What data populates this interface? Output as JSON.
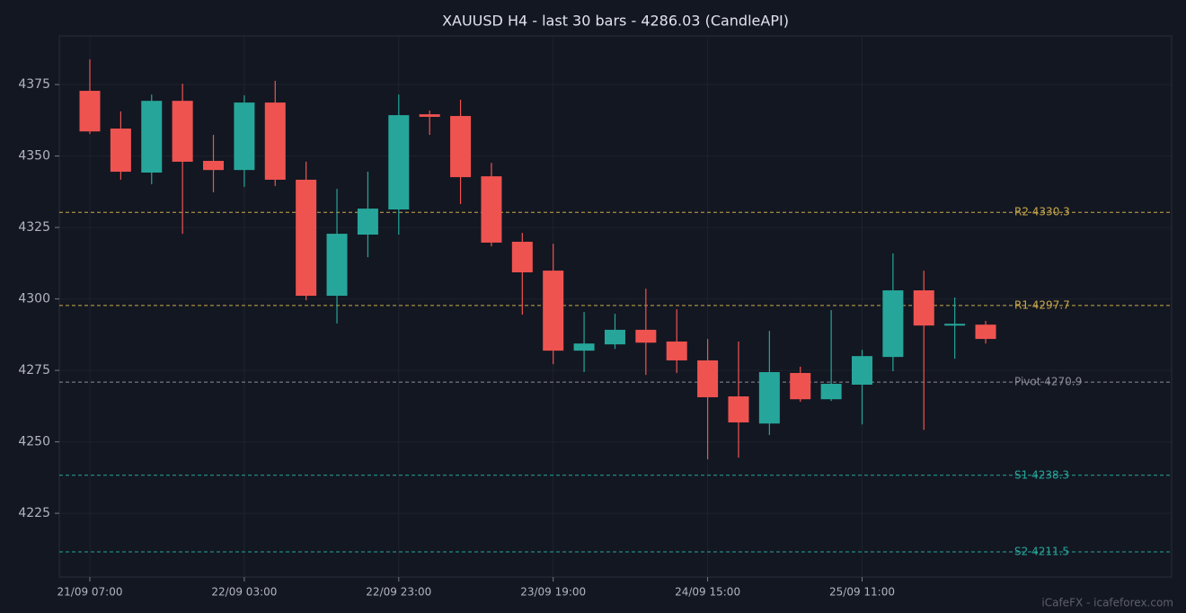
{
  "chart_data": {
    "type": "candlestick",
    "title": "XAUUSD H4 - last 30 bars - 4286.03 (CandleAPI)",
    "categories": [
      "21/09 07:00",
      null,
      null,
      null,
      null,
      "22/09 03:00",
      null,
      null,
      null,
      null,
      "22/09 23:00",
      null,
      null,
      null,
      null,
      "23/09 19:00",
      null,
      null,
      null,
      null,
      "24/09 15:00",
      null,
      null,
      null,
      null,
      "25/09 11:00",
      null,
      null,
      null,
      null
    ],
    "open": [
      4372.8,
      4359.6,
      4344.2,
      4369.3,
      4348.3,
      4345.1,
      4368.7,
      4341.7,
      4301.1,
      4322.5,
      4331.3,
      4364.6,
      4364.0,
      4342.9,
      4320.0,
      4309.9,
      4281.9,
      4284.1,
      4289.2,
      4285.1,
      4278.5,
      4265.9,
      4256.4,
      4274.1,
      4264.9,
      4270.0,
      4279.7,
      4303.0,
      4290.7,
      4291.0
    ],
    "high": [
      4383.8,
      4365.6,
      4371.5,
      4375.3,
      4357.4,
      4371.2,
      4376.3,
      4348.0,
      4338.5,
      4344.5,
      4371.5,
      4365.9,
      4369.7,
      4347.6,
      4323.1,
      4319.3,
      4295.4,
      4294.8,
      4303.6,
      4296.4,
      4286.0,
      4285.1,
      4288.8,
      4276.3,
      4296.1,
      4282.2,
      4315.9,
      4309.9,
      4300.5,
      4292.3
    ],
    "low": [
      4357.7,
      4341.7,
      4340.1,
      4322.8,
      4337.3,
      4339.2,
      4339.5,
      4299.5,
      4291.4,
      4314.6,
      4322.5,
      4357.4,
      4333.2,
      4318.4,
      4294.5,
      4277.2,
      4274.4,
      4282.5,
      4273.4,
      4274.1,
      4243.9,
      4244.5,
      4252.4,
      4264.0,
      4264.3,
      4256.1,
      4274.7,
      4254.2,
      4279.1,
      4284.4
    ],
    "close": [
      4358.6,
      4344.5,
      4369.3,
      4348.0,
      4345.1,
      4368.7,
      4341.7,
      4301.1,
      4322.8,
      4331.6,
      4364.3,
      4363.7,
      4342.6,
      4319.7,
      4309.3,
      4281.9,
      4284.4,
      4289.2,
      4284.7,
      4278.5,
      4265.6,
      4256.8,
      4274.4,
      4264.9,
      4270.3,
      4280.0,
      4303.0,
      4290.7,
      4291.3,
      4286.0
    ],
    "up_color": "#26a69a",
    "down_color": "#ef5350",
    "levels": [
      {
        "label": "R2 4330.3",
        "value": 4330.3,
        "color": "#c9a94a"
      },
      {
        "label": "R1 4297.7",
        "value": 4297.7,
        "color": "#c9a94a"
      },
      {
        "label": "Pivot 4270.9",
        "value": 4270.9,
        "color": "#8a8d96"
      },
      {
        "label": "S1 4238.3",
        "value": 4238.3,
        "color": "#26a69a"
      },
      {
        "label": "S2 4211.5",
        "value": 4211.5,
        "color": "#26a69a"
      }
    ],
    "ylim": [
      4202.7,
      4392
    ],
    "yticks": [
      4225,
      4250,
      4275,
      4300,
      4325,
      4350,
      4375
    ],
    "grid": true,
    "watermark": "iCafeFX - icafeforex.com"
  }
}
